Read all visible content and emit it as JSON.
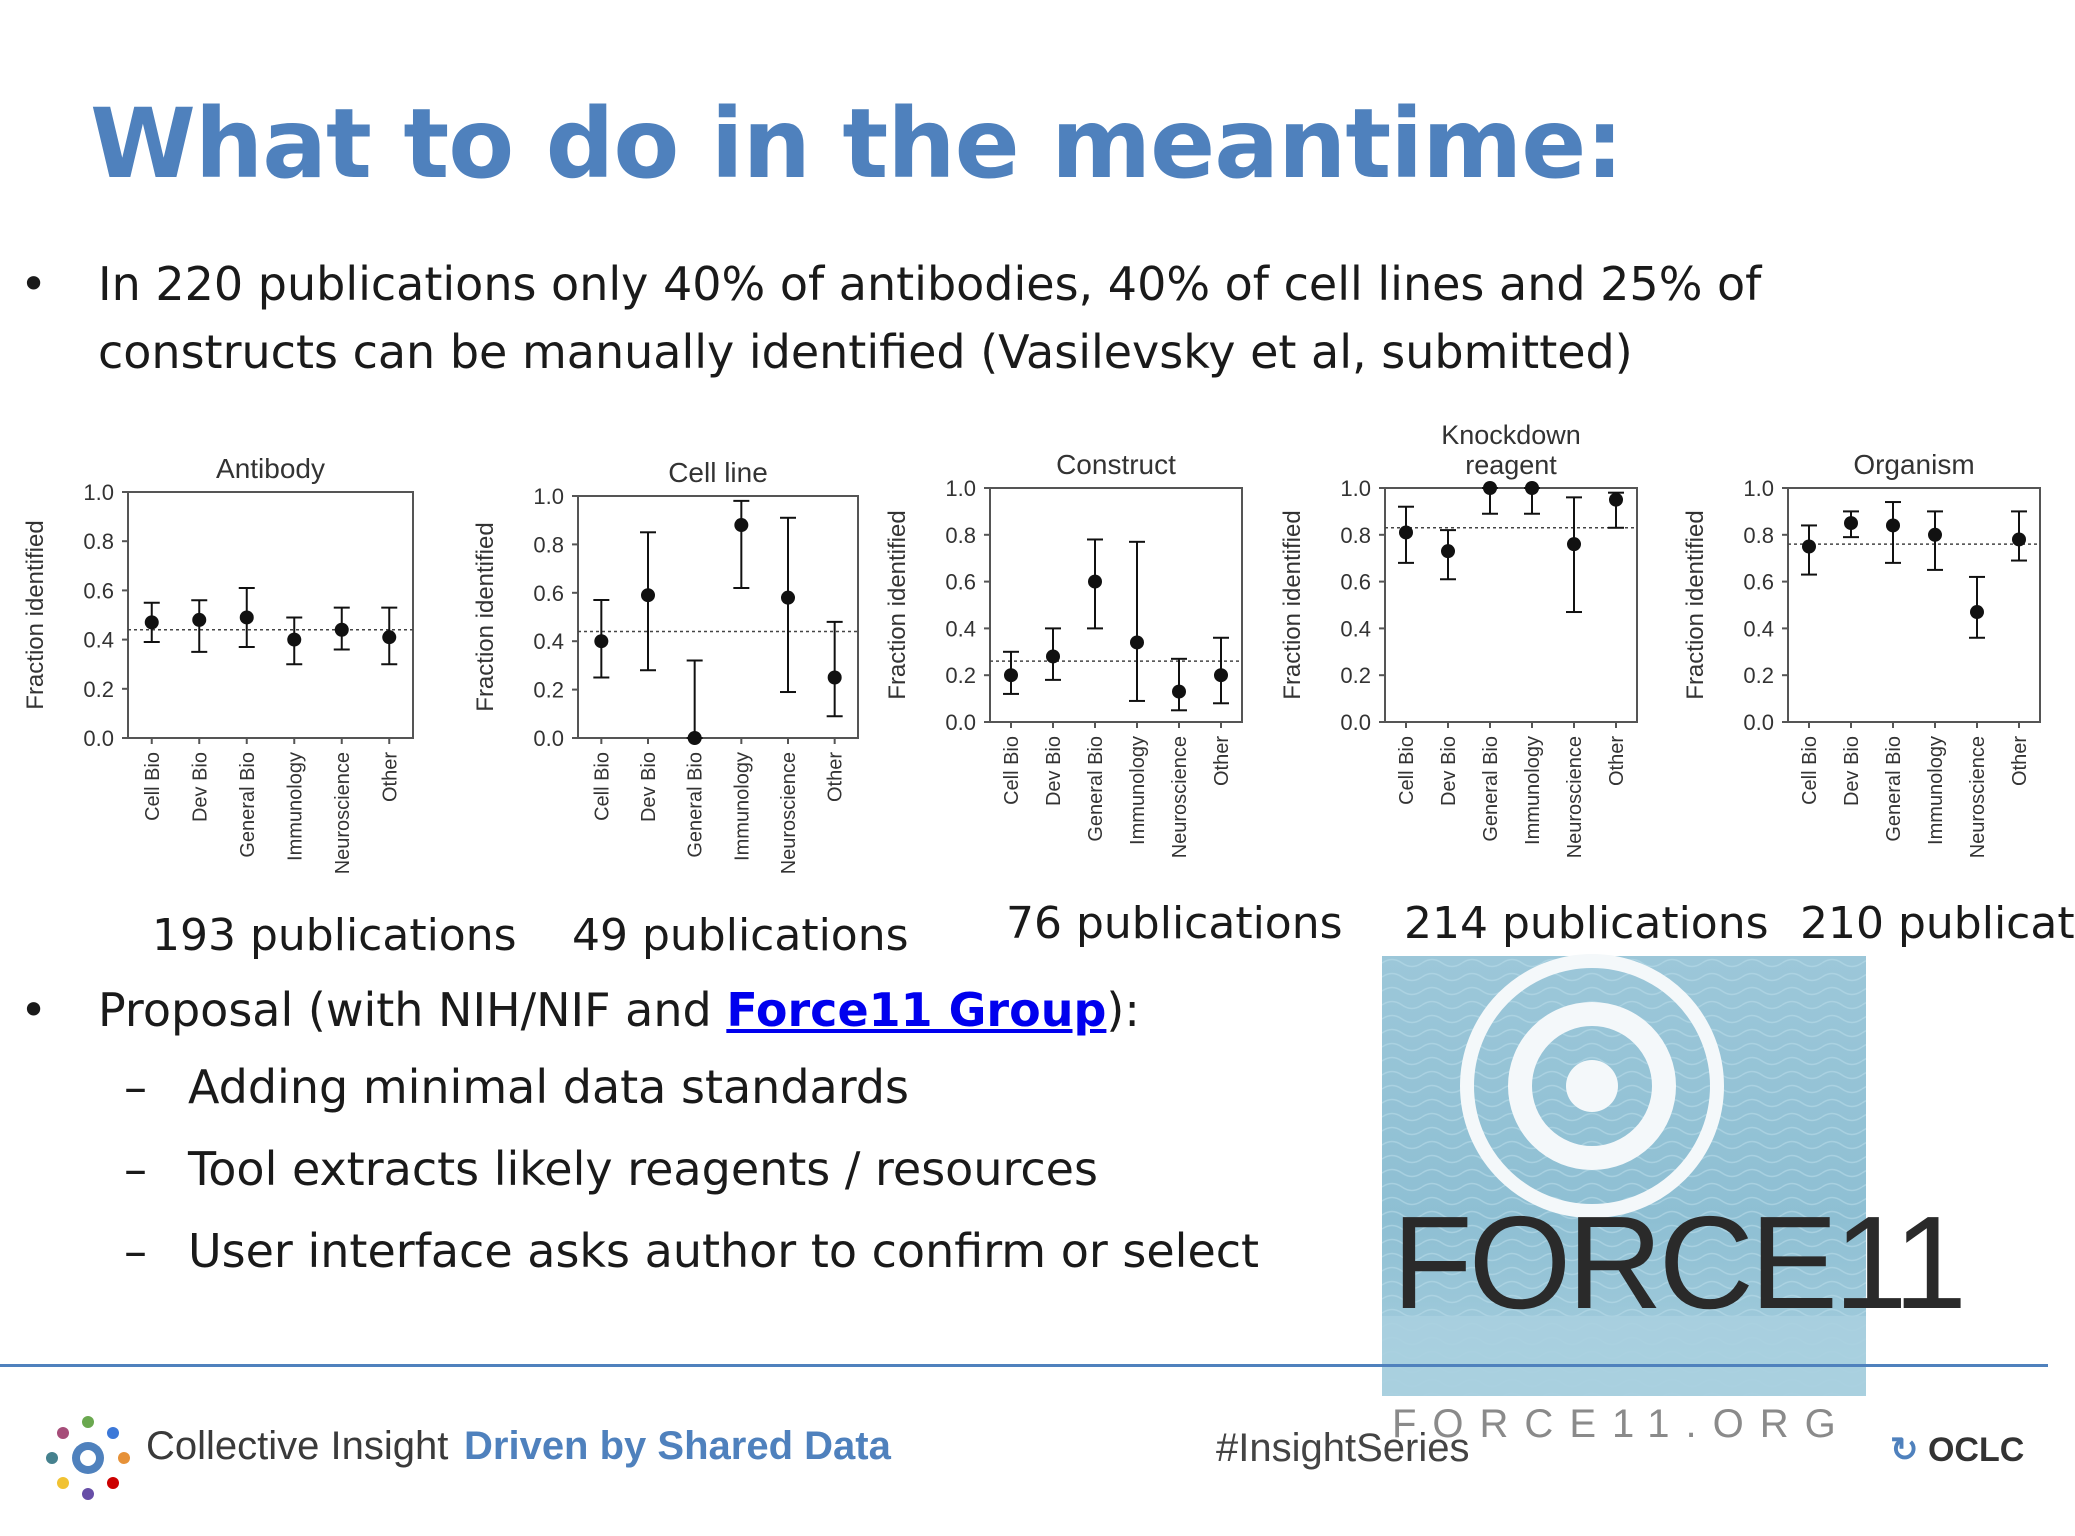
{
  "slide": {
    "title": "What to do in the meantime:",
    "bullet1": {
      "line1": "In 220 publications only 40% of antibodies, 40% of cell lines and 25% of",
      "line2": "constructs can be manually identified (Vasilevsky et al, submitted)"
    },
    "bullet2": {
      "prefix": "Proposal (with NIH/NIF and ",
      "link": "Force11 Group",
      "suffix": "):"
    },
    "subbullets": [
      "Adding minimal data standards",
      "Tool extracts likely reagents / resources",
      "User interface asks author to confirm or select"
    ],
    "bullet_symbol": "•",
    "dash_symbol": "–",
    "pub_counts": [
      "193 publications",
      "49 publications",
      "76 publications",
      "214 publications",
      "210 publicat"
    ]
  },
  "logo": {
    "text": "FORCE11",
    "url": "FORCE11.ORG",
    "bg_color": "#93c3d6"
  },
  "footer": {
    "brand": "Collective Insight",
    "tagline": "Driven by Shared Data",
    "hashtag": "#InsightSeries",
    "partner": "OCLC"
  },
  "colors": {
    "title": "#4f81bd",
    "link": "#0000ee",
    "footer_line": "#4f81bd"
  },
  "chart_data": [
    {
      "type": "scatter",
      "title": "Antibody",
      "ylabel": "Fraction identified",
      "ylim": [
        0,
        1.0
      ],
      "yticks": [
        "0.0",
        "0.2",
        "0.4",
        "0.6",
        "0.8",
        "1.0"
      ],
      "categories": [
        "Cell Bio",
        "Dev Bio",
        "General Bio",
        "Immunology",
        "Neuroscience",
        "Other"
      ],
      "values": [
        0.47,
        0.48,
        0.49,
        0.4,
        0.44,
        0.41
      ],
      "err_low": [
        0.39,
        0.35,
        0.37,
        0.3,
        0.36,
        0.3
      ],
      "err_high": [
        0.55,
        0.56,
        0.61,
        0.49,
        0.53,
        0.53
      ],
      "mean_line": 0.44
    },
    {
      "type": "scatter",
      "title": "Cell line",
      "ylabel": "Fraction identified",
      "ylim": [
        0,
        1.0
      ],
      "yticks": [
        "0.0",
        "0.2",
        "0.4",
        "0.6",
        "0.8",
        "1.0"
      ],
      "categories": [
        "Cell Bio",
        "Dev Bio",
        "General Bio",
        "Immunology",
        "Neuroscience",
        "Other"
      ],
      "values": [
        0.4,
        0.59,
        0.0,
        0.88,
        0.58,
        0.25
      ],
      "err_low": [
        0.25,
        0.28,
        0.0,
        0.62,
        0.19,
        0.09
      ],
      "err_high": [
        0.57,
        0.85,
        0.32,
        0.98,
        0.91,
        0.48
      ],
      "mean_line": 0.44
    },
    {
      "type": "scatter",
      "title": "Construct",
      "ylabel": "Fraction identified",
      "ylim": [
        0,
        1.0
      ],
      "yticks": [
        "0.0",
        "0.2",
        "0.4",
        "0.6",
        "0.8",
        "1.0"
      ],
      "categories": [
        "Cell Bio",
        "Dev Bio",
        "General Bio",
        "Immunology",
        "Neuroscience",
        "Other"
      ],
      "values": [
        0.2,
        0.28,
        0.6,
        0.34,
        0.13,
        0.2
      ],
      "err_low": [
        0.12,
        0.18,
        0.4,
        0.09,
        0.05,
        0.08
      ],
      "err_high": [
        0.3,
        0.4,
        0.78,
        0.77,
        0.27,
        0.36
      ],
      "mean_line": 0.26
    },
    {
      "type": "scatter",
      "title": "Knockdown reagent",
      "ylabel": "Fraction identified",
      "ylim": [
        0,
        1.0
      ],
      "yticks": [
        "0.0",
        "0.2",
        "0.4",
        "0.6",
        "0.8",
        "1.0"
      ],
      "categories": [
        "Cell Bio",
        "Dev Bio",
        "General Bio",
        "Immunology",
        "Neuroscience",
        "Other"
      ],
      "values": [
        0.81,
        0.73,
        1.0,
        1.0,
        0.76,
        0.95
      ],
      "err_low": [
        0.68,
        0.61,
        0.89,
        0.89,
        0.47,
        0.83
      ],
      "err_high": [
        0.92,
        0.82,
        1.0,
        1.0,
        0.96,
        0.98
      ],
      "mean_line": 0.83
    },
    {
      "type": "scatter",
      "title": "Organism",
      "ylabel": "Fraction identified",
      "ylim": [
        0,
        1.0
      ],
      "yticks": [
        "0.0",
        "0.2",
        "0.4",
        "0.6",
        "0.8",
        "1.0"
      ],
      "categories": [
        "Cell Bio",
        "Dev Bio",
        "General Bio",
        "Immunology",
        "Neuroscience",
        "Other"
      ],
      "values": [
        0.75,
        0.85,
        0.84,
        0.8,
        0.47,
        0.78
      ],
      "err_low": [
        0.63,
        0.79,
        0.68,
        0.65,
        0.36,
        0.69
      ],
      "err_high": [
        0.84,
        0.9,
        0.94,
        0.9,
        0.62,
        0.9
      ],
      "mean_line": 0.76
    }
  ]
}
